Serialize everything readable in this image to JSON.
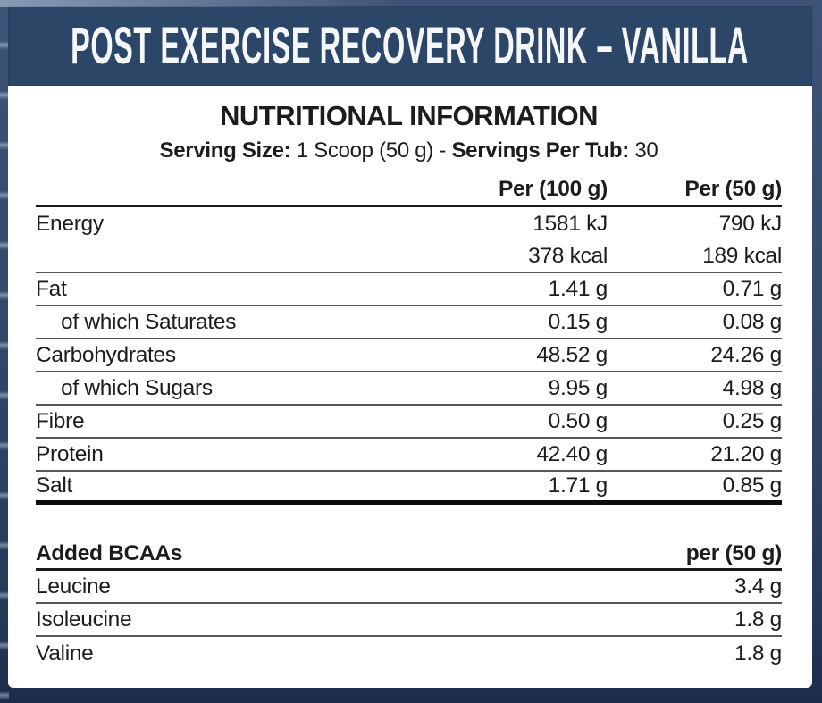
{
  "banner": {
    "title": "POST EXERCISE RECOVERY DRINK – VANILLA"
  },
  "info": {
    "title": "NUTRITIONAL INFORMATION",
    "serving_size_label": "Serving Size:",
    "serving_size_value": "1 Scoop (50 g)",
    "separator": "-",
    "servings_per_tub_label": "Servings Per Tub:",
    "servings_per_tub_value": "30"
  },
  "nutrition_table": {
    "col_per100": "Per (100 g)",
    "col_per50": "Per (50 g)",
    "rows": [
      {
        "label": "Energy",
        "per100": "1581 kJ",
        "per50": "790 kJ",
        "indent": false
      },
      {
        "label": "",
        "per100": "378 kcal",
        "per50": "189 kcal",
        "indent": false
      },
      {
        "label": "Fat",
        "per100": "1.41 g",
        "per50": "0.71 g",
        "indent": false
      },
      {
        "label": "of which Saturates",
        "per100": "0.15 g",
        "per50": "0.08 g",
        "indent": true
      },
      {
        "label": "Carbohydrates",
        "per100": "48.52 g",
        "per50": "24.26 g",
        "indent": false
      },
      {
        "label": "of which Sugars",
        "per100": "9.95 g",
        "per50": "4.98 g",
        "indent": true
      },
      {
        "label": "Fibre",
        "per100": "0.50 g",
        "per50": "0.25 g",
        "indent": false
      },
      {
        "label": "Protein",
        "per100": "42.40 g",
        "per50": "21.20 g",
        "indent": false
      },
      {
        "label": "Salt",
        "per100": "1.71 g",
        "per50": "0.85 g",
        "indent": false
      }
    ]
  },
  "bcaa_table": {
    "title": "Added BCAAs",
    "column": "per (50 g)",
    "rows": [
      {
        "label": "Leucine",
        "value": "3.4 g"
      },
      {
        "label": "Isoleucine",
        "value": "1.8 g"
      },
      {
        "label": "Valine",
        "value": "1.8 g"
      }
    ]
  },
  "colors": {
    "banner_navy": "#2c4668",
    "frame_navy": "#33496c",
    "frame_dark": "#1c2c4b",
    "text": "#1c1c1c",
    "separator": "#565656",
    "heavy_rule": "#0e0e0e"
  }
}
